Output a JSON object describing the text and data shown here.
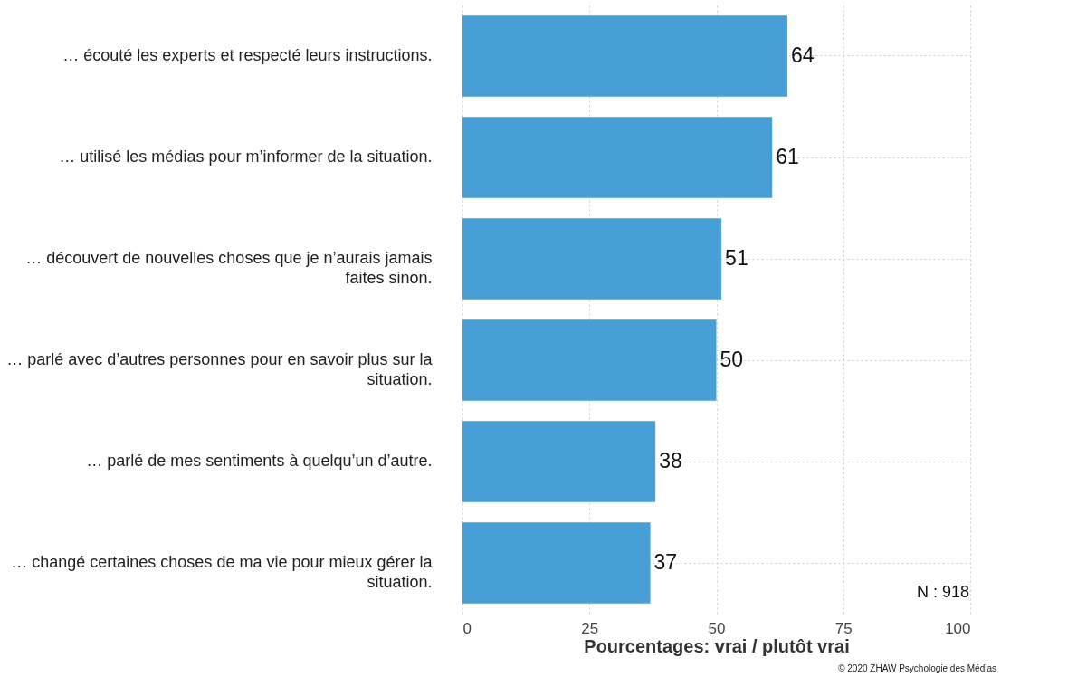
{
  "chart_data": {
    "type": "bar",
    "orientation": "horizontal",
    "xlabel": "Pourcentages: vrai / plutôt vrai",
    "categories": [
      "… écouté les experts et respecté leurs instructions.",
      "… utilisé les médias pour m’informer de la situation.",
      "… découvert de nouvelles choses que je n’aurais jamais faites sinon.",
      "… parlé avec d’autres personnes pour en savoir plus sur la situation.",
      "… parlé de mes sentiments à quelqu’un d’autre.",
      "… changé certaines choses de ma vie pour mieux gérer la situation."
    ],
    "values": [
      64,
      61,
      51,
      50,
      38,
      37
    ],
    "color": "#479fd6",
    "data_labels": true,
    "xlim": [
      0,
      100
    ],
    "xticks": [
      0,
      25,
      50,
      75,
      100
    ],
    "grid": true,
    "annotations": [
      "N : 918",
      "© 2020 ZHAW Psychologie des Médias"
    ]
  }
}
